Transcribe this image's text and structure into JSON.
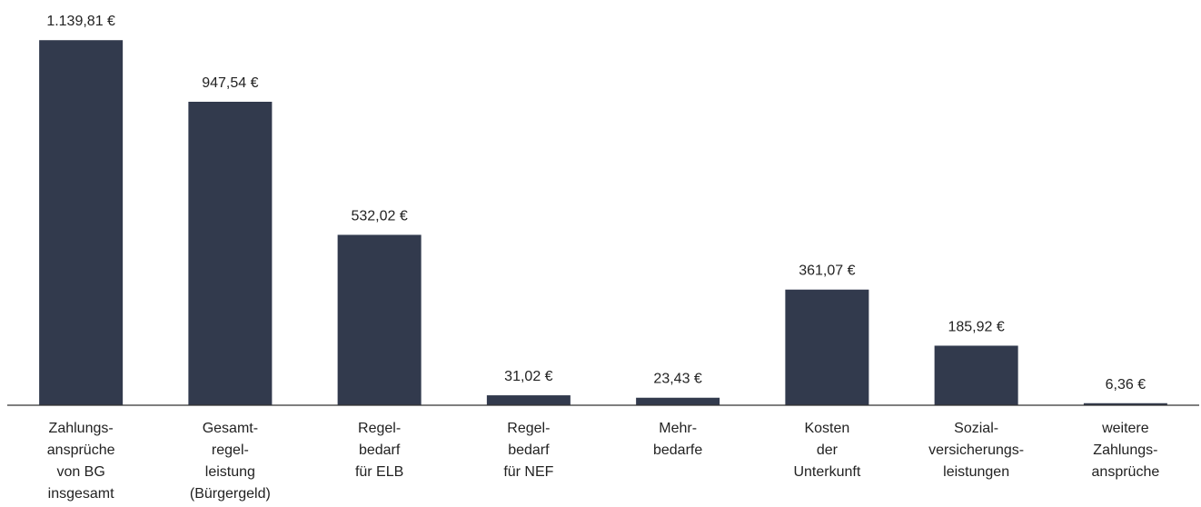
{
  "chart_data": {
    "type": "bar",
    "categories": [
      [
        "Zahlungs-",
        "ansprüche",
        "von BG",
        "insgesamt"
      ],
      [
        "Gesamt-",
        "regel-",
        "leistung",
        "(Bürgergeld)"
      ],
      [
        "Regel-",
        "bedarf",
        "für ELB"
      ],
      [
        "Regel-",
        "bedarf",
        "für NEF"
      ],
      [
        "Mehr-",
        "bedarfe"
      ],
      [
        "Kosten",
        "der",
        "Unterkunft"
      ],
      [
        "Sozial-",
        "versicherungs-",
        "leistungen"
      ],
      [
        "weitere",
        "Zahlungs-",
        "ansprüche"
      ]
    ],
    "values": [
      1139.81,
      947.54,
      532.02,
      31.02,
      23.43,
      361.07,
      185.92,
      6.36
    ],
    "value_labels": [
      "1.139,81 €",
      "947,54 €",
      "532,02 €",
      "31,02 €",
      "23,43 €",
      "361,07 €",
      "185,92 €",
      "6,36 €"
    ],
    "color": "#323a4d",
    "ylim": [
      0,
      1200
    ]
  }
}
